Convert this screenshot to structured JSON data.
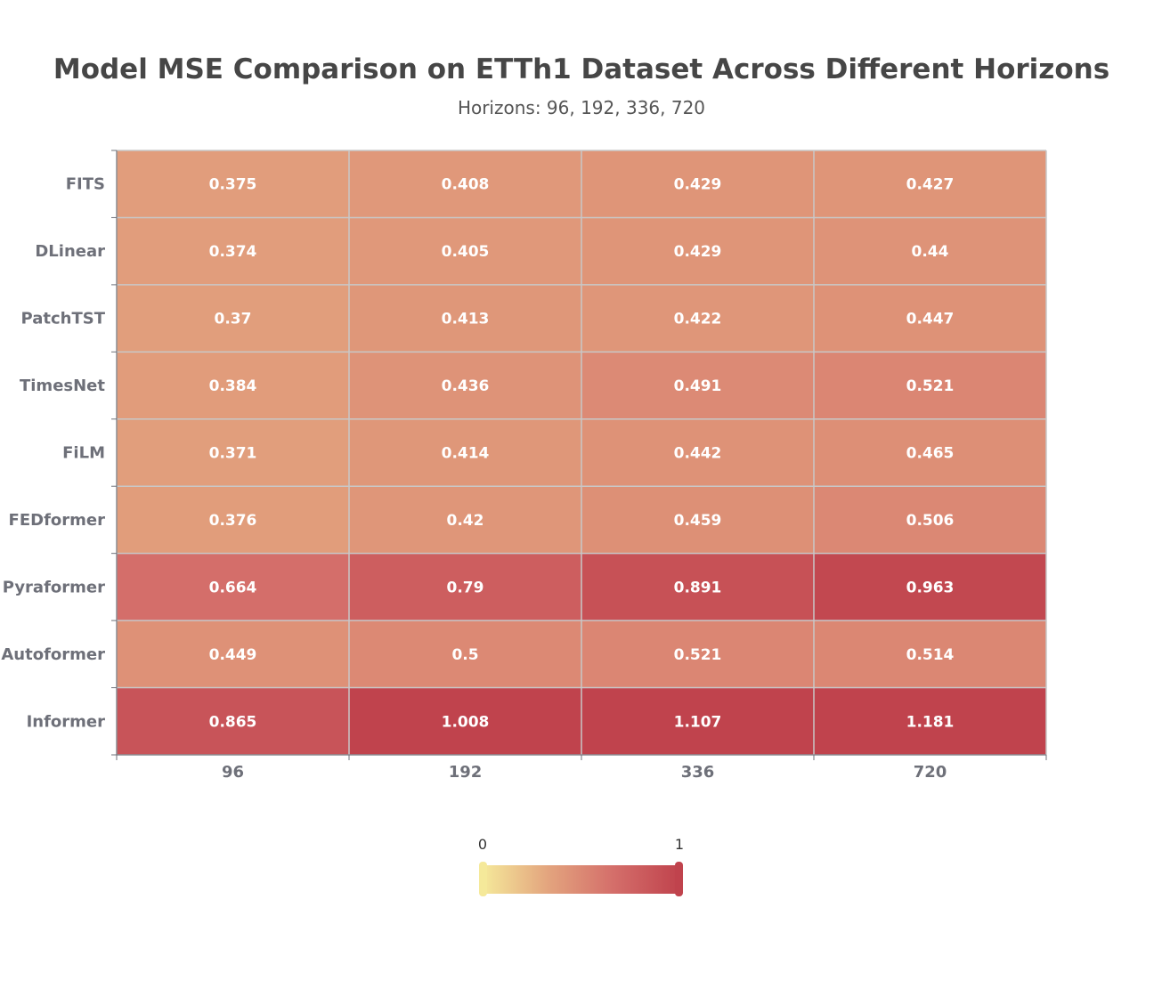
{
  "chart_data": {
    "type": "heatmap",
    "title": "Model MSE Comparison on ETTh1 Dataset Across Different Horizons",
    "subtitle": "Horizons: 96, 192, 336, 720",
    "x_categories": [
      "96",
      "192",
      "336",
      "720"
    ],
    "y_categories": [
      "FITS",
      "DLinear",
      "PatchTST",
      "TimesNet",
      "FiLM",
      "FEDformer",
      "Pyraformer",
      "Autoformer",
      "Informer"
    ],
    "values": [
      [
        0.375,
        0.408,
        0.429,
        0.427
      ],
      [
        0.374,
        0.405,
        0.429,
        0.44
      ],
      [
        0.37,
        0.413,
        0.422,
        0.447
      ],
      [
        0.384,
        0.436,
        0.491,
        0.521
      ],
      [
        0.371,
        0.414,
        0.442,
        0.465
      ],
      [
        0.376,
        0.42,
        0.459,
        0.506
      ],
      [
        0.664,
        0.79,
        0.891,
        0.963
      ],
      [
        0.449,
        0.5,
        0.521,
        0.514
      ],
      [
        0.865,
        1.008,
        1.107,
        1.181
      ]
    ],
    "visual_map": {
      "min": 0,
      "max": 1,
      "min_label": "0",
      "max_label": "1",
      "colors": [
        "#f5e99a",
        "#e3a47e",
        "#d46e6a",
        "#c0434d"
      ]
    },
    "grid": true,
    "legend_placement": "bottom-center"
  }
}
